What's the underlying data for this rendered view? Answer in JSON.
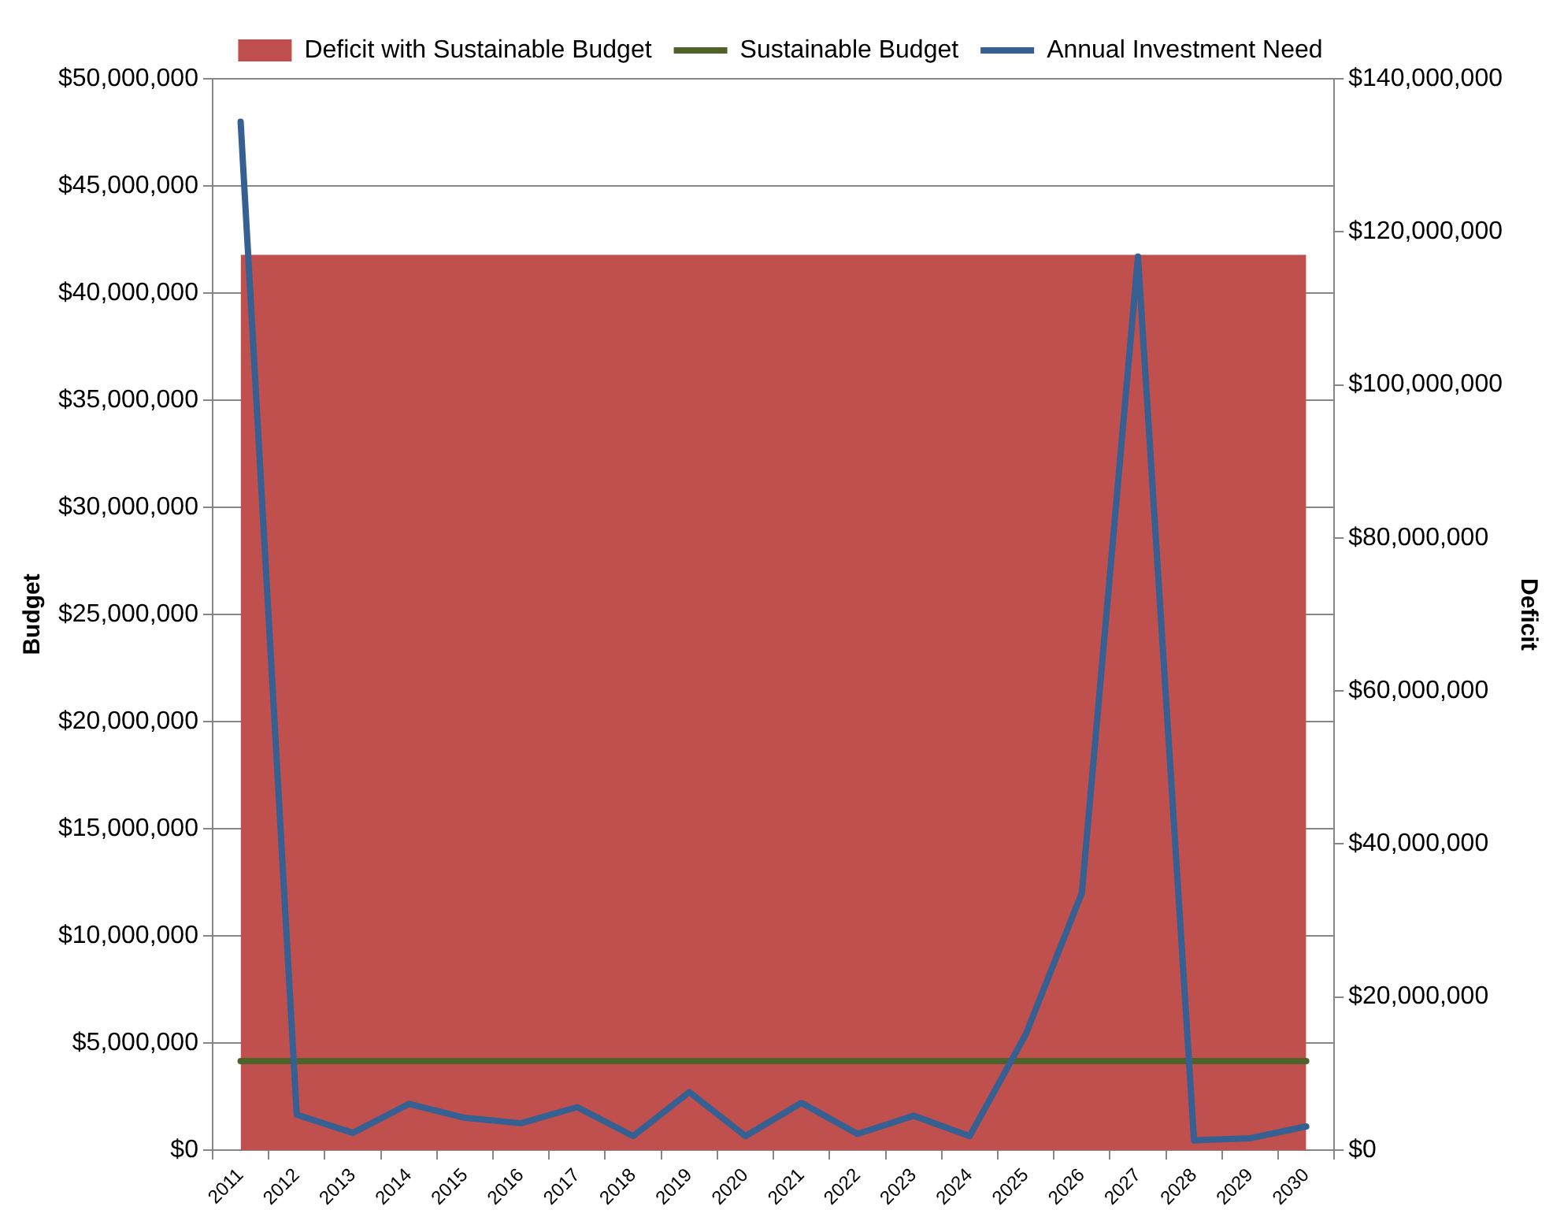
{
  "chart_data": {
    "type": "line",
    "categories": [
      "2011",
      "2012",
      "2013",
      "2014",
      "2015",
      "2016",
      "2017",
      "2018",
      "2019",
      "2020",
      "2021",
      "2022",
      "2023",
      "2024",
      "2025",
      "2026",
      "2027",
      "2028",
      "2029",
      "2030"
    ],
    "ylabel": "Budget",
    "y2label": "Deficit",
    "ylim": [
      0,
      50000000
    ],
    "yticks": [
      {
        "value": 0,
        "label": "$0"
      },
      {
        "value": 5000000,
        "label": "$5,000,000"
      },
      {
        "value": 10000000,
        "label": "$10,000,000"
      },
      {
        "value": 15000000,
        "label": "$15,000,000"
      },
      {
        "value": 20000000,
        "label": "$20,000,000"
      },
      {
        "value": 25000000,
        "label": "$25,000,000"
      },
      {
        "value": 30000000,
        "label": "$30,000,000"
      },
      {
        "value": 35000000,
        "label": "$35,000,000"
      },
      {
        "value": 40000000,
        "label": "$40,000,000"
      },
      {
        "value": 45000000,
        "label": "$45,000,000"
      },
      {
        "value": 50000000,
        "label": "$50,000,000"
      }
    ],
    "y2lim": [
      0,
      140000000
    ],
    "y2ticks": [
      {
        "value": 0,
        "label": "$0"
      },
      {
        "value": 20000000,
        "label": "$20,000,000"
      },
      {
        "value": 40000000,
        "label": "$40,000,000"
      },
      {
        "value": 60000000,
        "label": "$60,000,000"
      },
      {
        "value": 80000000,
        "label": "$80,000,000"
      },
      {
        "value": 100000000,
        "label": "$100,000,000"
      },
      {
        "value": 120000000,
        "label": "$120,000,000"
      },
      {
        "value": 140000000,
        "label": "$140,000,000"
      }
    ],
    "grid": "y",
    "legend": "top",
    "series": [
      {
        "name": "Deficit with Sustainable Budget",
        "type": "area",
        "axis": "y2",
        "color": "#c0504d",
        "values": [
          117000000,
          117000000,
          117000000,
          117000000,
          117000000,
          117000000,
          117000000,
          117000000,
          117000000,
          117000000,
          117000000,
          117000000,
          117000000,
          117000000,
          117000000,
          117000000,
          117000000,
          117000000,
          117000000,
          117000000
        ]
      },
      {
        "name": "Sustainable Budget",
        "color": "#4f6228",
        "values": [
          4150000,
          4150000,
          4150000,
          4150000,
          4150000,
          4150000,
          4150000,
          4150000,
          4150000,
          4150000,
          4150000,
          4150000,
          4150000,
          4150000,
          4150000,
          4150000,
          4150000,
          4150000,
          4150000,
          4150000
        ]
      },
      {
        "name": "Annual Investment Need",
        "color": "#366092",
        "values": [
          48000000,
          1650000,
          800000,
          2150000,
          1500000,
          1250000,
          2000000,
          650000,
          2700000,
          650000,
          2200000,
          750000,
          1600000,
          650000,
          5400000,
          12000000,
          41700000,
          450000,
          550000,
          1100000
        ]
      }
    ]
  }
}
